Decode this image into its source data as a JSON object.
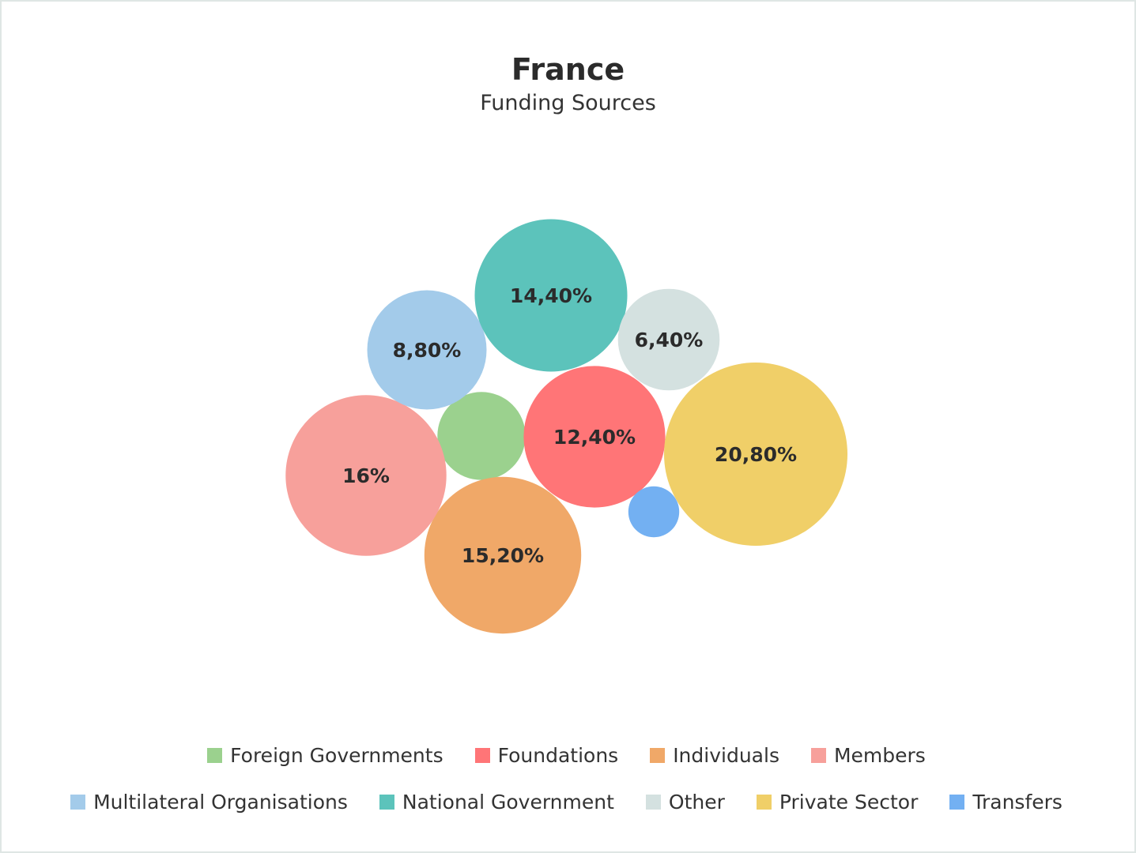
{
  "chart_data": {
    "type": "bubble",
    "title": "France",
    "subtitle": "Funding Sources",
    "legend_placement": "bottom",
    "series": [
      {
        "name": "Foreign Governments",
        "value": 4.8,
        "label": "",
        "color": "#9bd18e"
      },
      {
        "name": "Foundations",
        "value": 12.4,
        "label": "12,40%",
        "color": "#ff7577"
      },
      {
        "name": "Individuals",
        "value": 15.2,
        "label": "15,20%",
        "color": "#f0a868"
      },
      {
        "name": "Members",
        "value": 16.0,
        "label": "16%",
        "color": "#f7a09b"
      },
      {
        "name": "Multilateral Organisations",
        "value": 8.8,
        "label": "8,80%",
        "color": "#a3cbea"
      },
      {
        "name": "National Government",
        "value": 14.4,
        "label": "14,40%",
        "color": "#5cc3bb"
      },
      {
        "name": "Other",
        "value": 6.4,
        "label": "6,40%",
        "color": "#d4e1e0"
      },
      {
        "name": "Private Sector",
        "value": 20.8,
        "label": "20,80%",
        "color": "#f0cf68"
      },
      {
        "name": "Transfers",
        "value": 1.6,
        "label": "",
        "color": "#73b0f2"
      }
    ]
  }
}
